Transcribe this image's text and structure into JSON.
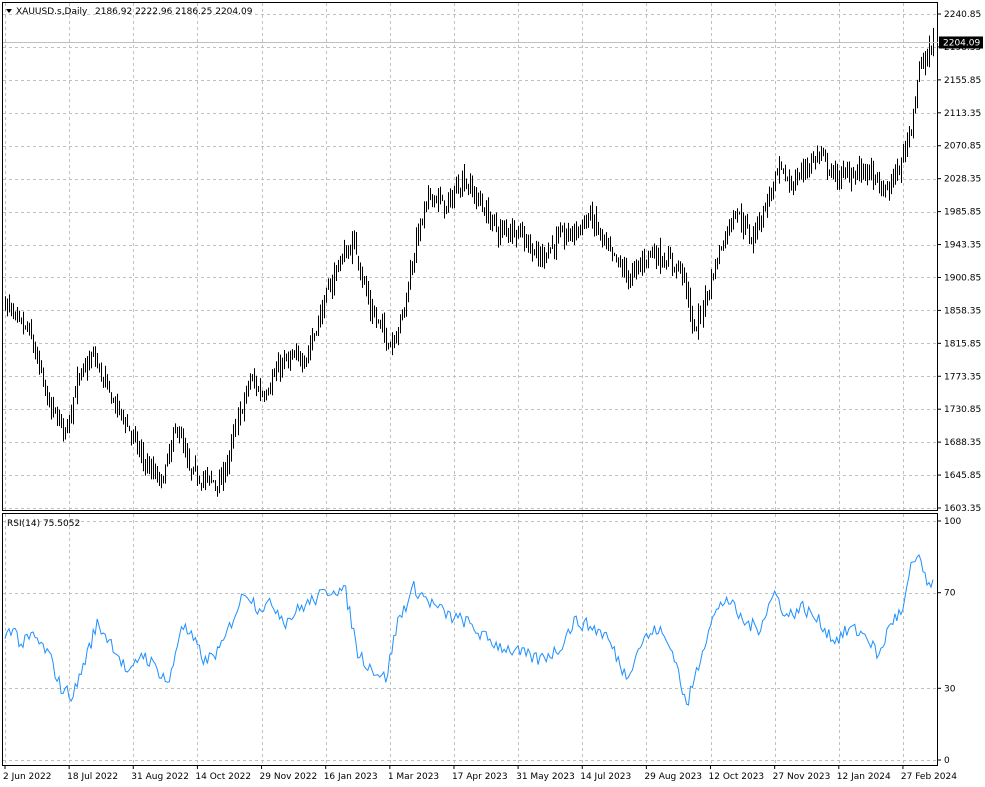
{
  "header": {
    "symbol_label": "XAUUSD.s,Daily",
    "ohlc_label": "2186.92 2222.96 2186.25 2204.09",
    "menu_icon": "triangle-down-icon"
  },
  "rsi_header": {
    "label": "RSI(14) 75.5052"
  },
  "colors": {
    "background": "#ffffff",
    "grid": "#c0c0c0",
    "price_bars": "#000000",
    "rsi_line": "#1e90ff",
    "current_price_bg": "#000000",
    "current_price_text": "#ffffff"
  },
  "chart_data": [
    {
      "type": "ohlc",
      "title": "XAUUSD.s,Daily",
      "ylim": [
        1603.35,
        2240.85
      ],
      "y_ticks": [
        "2240.85",
        "2198.35",
        "2155.85",
        "2113.35",
        "2070.85",
        "2028.35",
        "1985.85",
        "1943.35",
        "1900.85",
        "1858.35",
        "1815.85",
        "1773.35",
        "1730.85",
        "1688.35",
        "1645.85",
        "1603.35"
      ],
      "current_price": "2204.09",
      "x_ticks": [
        "2 Jun 2022",
        "18 Jul 2022",
        "31 Aug 2022",
        "14 Oct 2022",
        "29 Nov 2022",
        "16 Jan 2023",
        "1 Mar 2023",
        "17 Apr 2023",
        "31 May 2023",
        "14 Jul 2023",
        "29 Aug 2023",
        "12 Oct 2023",
        "27 Nov 2023",
        "12 Jan 2024",
        "27 Feb 2024"
      ],
      "x_tick_bar_index": [
        0,
        32,
        64,
        96,
        128,
        160,
        192,
        224,
        256,
        288,
        320,
        352,
        384,
        416,
        448
      ],
      "bar_count": 464,
      "series": [
        {
          "close_anchors": [
            [
              0,
              1870
            ],
            [
              5,
              1845
            ],
            [
              12,
              1830
            ],
            [
              22,
              1735
            ],
            [
              30,
              1705
            ],
            [
              36,
              1765
            ],
            [
              44,
              1800
            ],
            [
              52,
              1750
            ],
            [
              60,
              1715
            ],
            [
              70,
              1660
            ],
            [
              78,
              1635
            ],
            [
              86,
              1710
            ],
            [
              92,
              1650
            ],
            [
              100,
              1640
            ],
            [
              108,
              1635
            ],
            [
              116,
              1715
            ],
            [
              122,
              1770
            ],
            [
              128,
              1750
            ],
            [
              138,
              1790
            ],
            [
              150,
              1800
            ],
            [
              158,
              1860
            ],
            [
              166,
              1920
            ],
            [
              174,
              1945
            ],
            [
              182,
              1860
            ],
            [
              192,
              1815
            ],
            [
              198,
              1850
            ],
            [
              205,
              1950
            ],
            [
              212,
              2010
            ],
            [
              220,
              1990
            ],
            [
              228,
              2030
            ],
            [
              236,
              2000
            ],
            [
              246,
              1960
            ],
            [
              256,
              1965
            ],
            [
              266,
              1925
            ],
            [
              276,
              1950
            ],
            [
              284,
              1960
            ],
            [
              292,
              1980
            ],
            [
              302,
              1930
            ],
            [
              312,
              1900
            ],
            [
              322,
              1935
            ],
            [
              332,
              1920
            ],
            [
              338,
              1910
            ],
            [
              344,
              1830
            ],
            [
              350,
              1880
            ],
            [
              356,
              1935
            ],
            [
              364,
              1990
            ],
            [
              372,
              1950
            ],
            [
              380,
              2000
            ],
            [
              386,
              2040
            ],
            [
              392,
              2020
            ],
            [
              398,
              2040
            ],
            [
              406,
              2060
            ],
            [
              414,
              2030
            ],
            [
              422,
              2035
            ],
            [
              430,
              2040
            ],
            [
              438,
              2010
            ],
            [
              446,
              2040
            ],
            [
              452,
              2100
            ],
            [
              456,
              2170
            ],
            [
              460,
              2185
            ],
            [
              463,
              2204
            ]
          ],
          "last_bar": {
            "open": 2186.92,
            "high": 2222.96,
            "low": 2186.25,
            "close": 2204.09
          }
        }
      ]
    },
    {
      "type": "line",
      "title": "RSI(14) 75.5052",
      "ylim": [
        0,
        100
      ],
      "y_ticks": [
        "100",
        "70",
        "30",
        "0"
      ],
      "series": [
        {
          "values_anchors": [
            [
              0,
              52
            ],
            [
              4,
              56
            ],
            [
              8,
              48
            ],
            [
              14,
              52
            ],
            [
              22,
              44
            ],
            [
              28,
              30
            ],
            [
              34,
              27
            ],
            [
              40,
              42
            ],
            [
              46,
              57
            ],
            [
              54,
              48
            ],
            [
              62,
              35
            ],
            [
              68,
              45
            ],
            [
              76,
              38
            ],
            [
              82,
              32
            ],
            [
              88,
              57
            ],
            [
              94,
              50
            ],
            [
              100,
              41
            ],
            [
              108,
              47
            ],
            [
              114,
              60
            ],
            [
              120,
              71
            ],
            [
              126,
              64
            ],
            [
              134,
              65
            ],
            [
              140,
              58
            ],
            [
              148,
              64
            ],
            [
              156,
              68
            ],
            [
              164,
              72
            ],
            [
              170,
              70
            ],
            [
              176,
              45
            ],
            [
              182,
              39
            ],
            [
              190,
              34
            ],
            [
              196,
              58
            ],
            [
              204,
              72
            ],
            [
              212,
              66
            ],
            [
              222,
              60
            ],
            [
              230,
              58
            ],
            [
              238,
              52
            ],
            [
              246,
              48
            ],
            [
              256,
              45
            ],
            [
              266,
              42
            ],
            [
              276,
              46
            ],
            [
              284,
              58
            ],
            [
              292,
              56
            ],
            [
              300,
              52
            ],
            [
              310,
              35
            ],
            [
              318,
              50
            ],
            [
              326,
              55
            ],
            [
              334,
              44
            ],
            [
              340,
              22
            ],
            [
              346,
              40
            ],
            [
              352,
              58
            ],
            [
              360,
              68
            ],
            [
              368,
              58
            ],
            [
              376,
              55
            ],
            [
              384,
              70
            ],
            [
              390,
              60
            ],
            [
              398,
              64
            ],
            [
              406,
              58
            ],
            [
              414,
              50
            ],
            [
              422,
              55
            ],
            [
              430,
              52
            ],
            [
              436,
              43
            ],
            [
              442,
              58
            ],
            [
              448,
              62
            ],
            [
              452,
              80
            ],
            [
              456,
              86
            ],
            [
              460,
              72
            ],
            [
              463,
              75.5
            ]
          ]
        }
      ],
      "current_value": "75.5052"
    }
  ]
}
